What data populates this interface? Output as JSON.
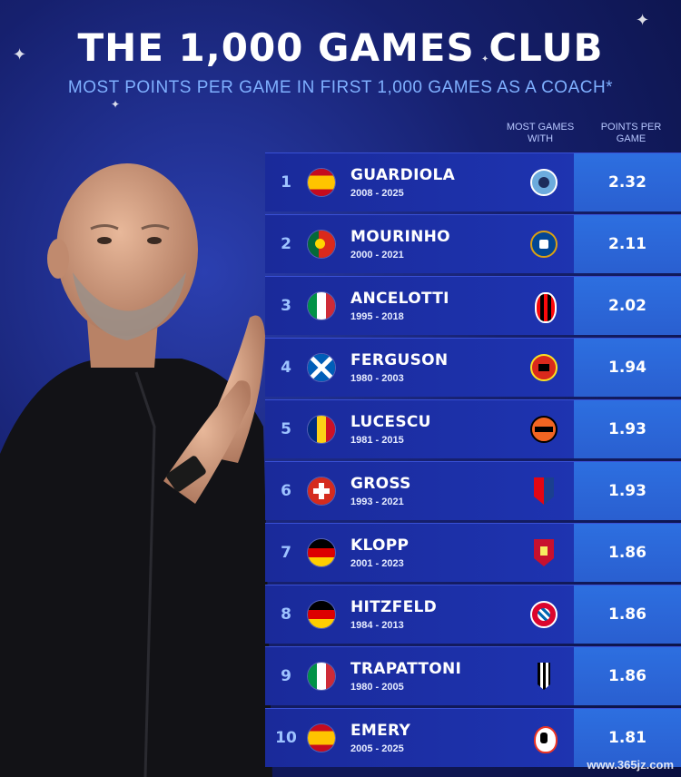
{
  "title": "THE 1,000 GAMES CLUB",
  "subtitle": "MOST POINTS PER GAME IN FIRST 1,000 GAMES AS A COACH*",
  "columns": {
    "most_games_with": "MOST GAMES WITH",
    "points_per_game": "POINTS PER GAME"
  },
  "rows": [
    {
      "rank": "1",
      "name": "GUARDIOLA",
      "years": "2008 - 2025",
      "flag": "spain-flag-icon",
      "club": "man-city-crest-icon",
      "ppg": "2.32"
    },
    {
      "rank": "2",
      "name": "MOURINHO",
      "years": "2000 - 2021",
      "flag": "portugal-flag-icon",
      "club": "chelsea-crest-icon",
      "ppg": "2.11"
    },
    {
      "rank": "3",
      "name": "ANCELOTTI",
      "years": "1995 - 2018",
      "flag": "italy-flag-icon",
      "club": "ac-milan-crest-icon",
      "ppg": "2.02"
    },
    {
      "rank": "4",
      "name": "FERGUSON",
      "years": "1980 - 2003",
      "flag": "scotland-flag-icon",
      "club": "man-united-crest-icon",
      "ppg": "1.94"
    },
    {
      "rank": "5",
      "name": "LUCESCU",
      "years": "1981 - 2015",
      "flag": "romania-flag-icon",
      "club": "shakhtar-crest-icon",
      "ppg": "1.93"
    },
    {
      "rank": "6",
      "name": "GROSS",
      "years": "1993 - 2021",
      "flag": "switzerland-flag-icon",
      "club": "basel-crest-icon",
      "ppg": "1.93"
    },
    {
      "rank": "7",
      "name": "KLOPP",
      "years": "2001 - 2023",
      "flag": "germany-flag-icon",
      "club": "liverpool-crest-icon",
      "ppg": "1.86"
    },
    {
      "rank": "8",
      "name": "HITZFELD",
      "years": "1984 - 2013",
      "flag": "germany-flag-icon",
      "club": "bayern-crest-icon",
      "ppg": "1.86"
    },
    {
      "rank": "9",
      "name": "TRAPATTONI",
      "years": "1980 - 2005",
      "flag": "italy-flag-icon",
      "club": "juventus-crest-icon",
      "ppg": "1.86"
    },
    {
      "rank": "10",
      "name": "EMERY",
      "years": "2005 - 2025",
      "flag": "spain-flag-icon",
      "club": "valencia-crest-icon",
      "ppg": "1.81"
    }
  ],
  "watermark": "www.365jz.com",
  "colors": {
    "background": "#16206e",
    "row": "#1f37b8",
    "ppg_cell": "#2d6fe0",
    "subtitle": "#7fb0ff"
  }
}
